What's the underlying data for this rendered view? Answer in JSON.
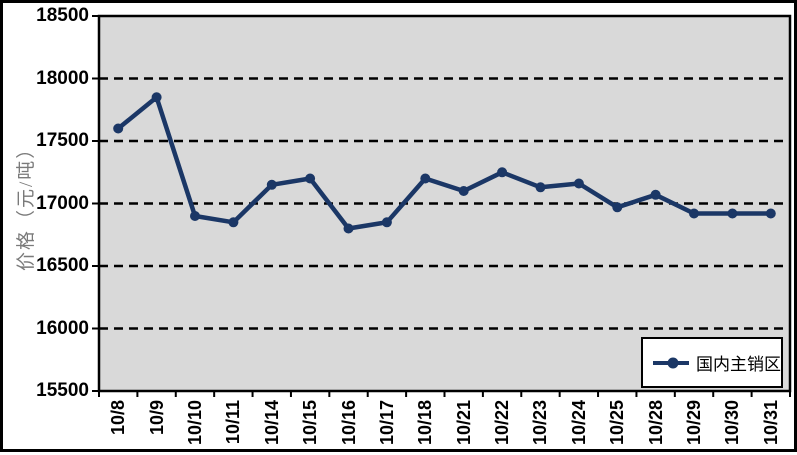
{
  "chart_data": {
    "type": "line",
    "title": "",
    "xlabel": "",
    "ylabel": "价格（元/吨）",
    "categories": [
      "10/8",
      "10/9",
      "10/10",
      "10/11",
      "10/14",
      "10/15",
      "10/16",
      "10/17",
      "10/18",
      "10/21",
      "10/22",
      "10/23",
      "10/24",
      "10/25",
      "10/28",
      "10/29",
      "10/30",
      "10/31"
    ],
    "series": [
      {
        "name": "国内主销区",
        "values": [
          17600,
          17850,
          16900,
          16850,
          17150,
          17200,
          16800,
          16850,
          17200,
          17100,
          17250,
          17130,
          17160,
          16970,
          17070,
          16920,
          16920,
          16920
        ]
      }
    ],
    "ylim": [
      15500,
      18500
    ],
    "yticks": [
      18500,
      18000,
      17500,
      17000,
      16500,
      16000,
      15500
    ],
    "grid": "horizontal-dashed",
    "legend_position": "bottom-right",
    "marker": "circle",
    "colors": {
      "line": "#1b3766",
      "plot_bg": "#d9d9d9",
      "gridline": "#000000",
      "axis": "#000000",
      "tick_text": "#000000",
      "ylabel_text": "#7a7a7a",
      "legend_bg": "#ffffff",
      "legend_border": "#000000",
      "outer_border": "#000000",
      "page_bg": "#ffffff"
    }
  },
  "legend": {
    "label": "国内主销区",
    "marker": "circle-on-line"
  }
}
